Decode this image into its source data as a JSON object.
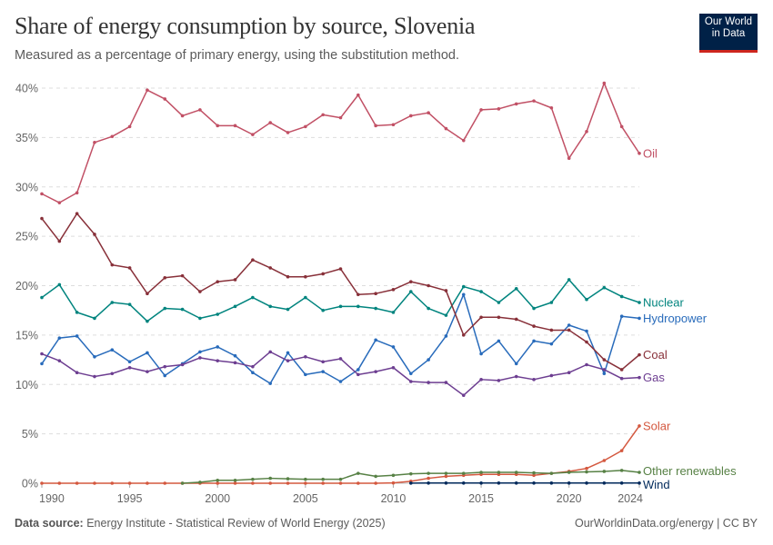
{
  "header": {
    "title": "Share of energy consumption by source, Slovenia",
    "subtitle": "Measured as a percentage of primary energy, using the substitution method.",
    "logo_line1": "Our World",
    "logo_line2": "in Data"
  },
  "footer": {
    "source_label": "Data source:",
    "source_text": "Energy Institute - Statistical Review of World Energy (2025)",
    "credit": "OurWorldinData.org/energy | CC BY"
  },
  "chart_data": {
    "type": "line",
    "title": "Share of energy consumption by source, Slovenia",
    "xlim": [
      1990,
      2024
    ],
    "ylim": [
      0,
      40
    ],
    "y_ticks": [
      "0%",
      "5%",
      "10%",
      "15%",
      "20%",
      "25%",
      "30%",
      "35%",
      "40%"
    ],
    "x_ticks": [
      "1990",
      "1995",
      "2000",
      "2005",
      "2010",
      "2015",
      "2020",
      "2024"
    ],
    "grid": "horizontal dashed",
    "legend": "inline labels at right end",
    "series": [
      {
        "name": "Oil",
        "color": "#c15065",
        "start": 1990,
        "values": [
          29.3,
          28.4,
          29.4,
          34.5,
          35.1,
          36.1,
          39.8,
          38.9,
          37.2,
          37.8,
          36.2,
          36.2,
          35.3,
          36.5,
          35.5,
          36.1,
          37.3,
          37.0,
          39.3,
          36.2,
          36.3,
          37.2,
          37.5,
          35.9,
          34.7,
          37.8,
          37.9,
          38.4,
          38.7,
          38.0,
          32.9,
          35.6,
          40.5,
          36.1,
          33.4
        ]
      },
      {
        "name": "Nuclear",
        "color": "#00847e",
        "start": 1990,
        "values": [
          18.8,
          20.1,
          17.3,
          16.7,
          18.3,
          18.1,
          16.4,
          17.7,
          17.6,
          16.7,
          17.1,
          17.9,
          18.8,
          17.9,
          17.6,
          18.8,
          17.5,
          17.9,
          17.9,
          17.7,
          17.3,
          19.4,
          17.7,
          17.0,
          19.9,
          19.4,
          18.3,
          19.7,
          17.7,
          18.3,
          20.6,
          18.6,
          19.8,
          18.9,
          18.3
        ]
      },
      {
        "name": "Hydropower",
        "color": "#286bbb",
        "start": 1990,
        "values": [
          12.1,
          14.7,
          14.9,
          12.8,
          13.5,
          12.3,
          13.2,
          10.9,
          12.1,
          13.3,
          13.8,
          12.9,
          11.2,
          10.1,
          13.2,
          11.0,
          11.3,
          10.3,
          11.5,
          14.5,
          13.8,
          11.1,
          12.5,
          14.9,
          19.1,
          13.1,
          14.4,
          12.1,
          14.4,
          14.1,
          16.0,
          15.4,
          11.1,
          16.9,
          16.7
        ]
      },
      {
        "name": "Coal",
        "color": "#883039",
        "start": 1990,
        "values": [
          26.8,
          24.5,
          27.3,
          25.2,
          22.1,
          21.8,
          19.2,
          20.8,
          21.0,
          19.4,
          20.4,
          20.6,
          22.6,
          21.8,
          20.9,
          20.9,
          21.2,
          21.7,
          19.1,
          19.2,
          19.6,
          20.4,
          20.0,
          19.5,
          15.0,
          16.8,
          16.8,
          16.6,
          15.9,
          15.5,
          15.5,
          14.3,
          12.5,
          11.5,
          13.0
        ]
      },
      {
        "name": "Gas",
        "color": "#6d3e91",
        "start": 1990,
        "values": [
          13.1,
          12.4,
          11.2,
          10.8,
          11.1,
          11.7,
          11.3,
          11.8,
          12.0,
          12.7,
          12.4,
          12.2,
          11.8,
          13.3,
          12.4,
          12.8,
          12.3,
          12.6,
          11.0,
          11.3,
          11.7,
          10.3,
          10.2,
          10.2,
          8.9,
          10.5,
          10.4,
          10.8,
          10.5,
          10.9,
          11.2,
          12.0,
          11.5,
          10.6,
          10.7
        ]
      },
      {
        "name": "Solar",
        "color": "#d4583f",
        "start": 1990,
        "values": [
          0,
          0,
          0,
          0,
          0,
          0,
          0,
          0,
          0,
          0,
          0,
          0,
          0,
          0,
          0,
          0,
          0,
          0,
          0,
          0,
          0.03,
          0.2,
          0.5,
          0.7,
          0.8,
          0.9,
          0.9,
          0.9,
          0.8,
          1.0,
          1.2,
          1.5,
          2.3,
          3.3,
          5.8
        ]
      },
      {
        "name": "Other renewables",
        "color": "#578145",
        "start": 1998,
        "values": [
          0,
          0.1,
          0.3,
          0.3,
          0.4,
          0.5,
          0.45,
          0.4,
          0.4,
          0.4,
          1.0,
          0.7,
          0.8,
          0.95,
          1.0,
          1.0,
          1.0,
          1.1,
          1.1,
          1.1,
          1.05,
          1.0,
          1.1,
          1.15,
          1.2,
          1.3,
          1.1
        ]
      },
      {
        "name": "Wind",
        "color": "#00295b",
        "start": 2011,
        "values": [
          0.01,
          0.02,
          0.02,
          0.02,
          0.02,
          0.02,
          0.02,
          0.02,
          0.02,
          0.02,
          0.02,
          0.02,
          0.02,
          0.02
        ]
      }
    ]
  }
}
